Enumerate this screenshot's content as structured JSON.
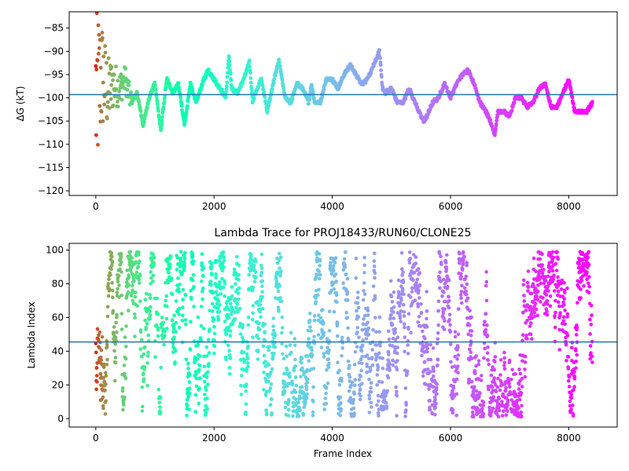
{
  "chart_data": [
    {
      "type": "scatter",
      "title": "",
      "xlabel": "",
      "ylabel": "ΔG (kT)",
      "xlim": [
        -450,
        8820
      ],
      "ylim": [
        -121,
        -81.5
      ],
      "xticks": [
        0,
        2000,
        4000,
        6000,
        8000
      ],
      "xtick_labels": [
        "0",
        "2000",
        "4000",
        "6000",
        "8000"
      ],
      "yticks": [
        -120,
        -115,
        -110,
        -105,
        -100,
        -95,
        -90,
        -85
      ],
      "ytick_labels": [
        "−120",
        "−115",
        "−110",
        "−105",
        "−100",
        "−95",
        "−90",
        "−85"
      ],
      "hline": -99.3,
      "hline_color": "#1f77b4",
      "colormap": "rainbow",
      "grid": false,
      "x_max": 8400,
      "series": [
        {
          "x": [
            0,
            100,
            200,
            300,
            400,
            500,
            600,
            700,
            800,
            900,
            1000,
            1100,
            1200,
            1300,
            1400,
            1500,
            1600,
            1700,
            1800,
            1900,
            2000,
            2100,
            2200,
            2250,
            2300,
            2400,
            2500,
            2600,
            2650,
            2700,
            2800,
            2900,
            3000,
            3100,
            3150,
            3200,
            3300,
            3400,
            3500,
            3600,
            3650,
            3700,
            3800,
            3900,
            4000,
            4100,
            4200,
            4300,
            4400,
            4500,
            4600,
            4700,
            4800,
            4850,
            4900,
            5000,
            5100,
            5200,
            5300,
            5400,
            5500,
            5550,
            5600,
            5700,
            5800,
            5900,
            6000,
            6100,
            6200,
            6300,
            6400,
            6500,
            6600,
            6700,
            6750,
            6800,
            6900,
            7000,
            7100,
            7200,
            7300,
            7400,
            7500,
            7600,
            7700,
            7800,
            7900,
            8000,
            8100,
            8200,
            8300,
            8400
          ],
          "y": [
            -100,
            -95,
            -99,
            -97,
            -98,
            -96,
            -101,
            -99,
            -106,
            -100,
            -97,
            -107,
            -96,
            -99,
            -97,
            -106,
            -97,
            -101,
            -97,
            -94,
            -96,
            -98,
            -100,
            -91,
            -98,
            -99,
            -96,
            -92,
            -101,
            -99,
            -96,
            -103,
            -97,
            -92,
            -96,
            -100,
            -101,
            -97,
            -98,
            -101,
            -97,
            -101,
            -101,
            -96,
            -96,
            -98,
            -95,
            -93,
            -95,
            -97,
            -96,
            -93,
            -90,
            -98,
            -99,
            -98,
            -101,
            -101,
            -98,
            -101,
            -104,
            -105,
            -104,
            -101,
            -100,
            -97,
            -100,
            -97,
            -95,
            -94,
            -97,
            -101,
            -103,
            -106,
            -108,
            -103,
            -103,
            -104,
            -100,
            -100,
            -102,
            -101,
            -98,
            -97,
            -102,
            -102,
            -99,
            -96,
            -103,
            -103,
            -103,
            -101
          ]
        }
      ]
    },
    {
      "type": "scatter",
      "title": "Lambda Trace for PROJ18433/RUN60/CLONE25",
      "xlabel": "Frame Index",
      "ylabel": "Lambda Index",
      "xlim": [
        -450,
        8820
      ],
      "ylim": [
        -5,
        104
      ],
      "xticks": [
        0,
        2000,
        4000,
        6000,
        8000
      ],
      "xtick_labels": [
        "0",
        "2000",
        "4000",
        "6000",
        "8000"
      ],
      "yticks": [
        0,
        20,
        40,
        60,
        80,
        100
      ],
      "ytick_labels": [
        "0",
        "20",
        "40",
        "60",
        "80",
        "100"
      ],
      "hline": 45.5,
      "hline_color": "#1f77b4",
      "colormap": "rainbow",
      "grid": false,
      "x_max": 8400,
      "lambda_range": [
        1,
        99
      ]
    }
  ]
}
